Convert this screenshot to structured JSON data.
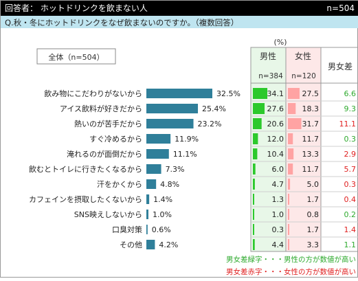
{
  "header": {
    "respondents": "回答者： ホットドリンクを飲まない人",
    "n_label": "n=504",
    "question": "Q.秋・冬にホットドリンクをなぜ飲まないのですか。（複数回答）"
  },
  "overall_label": "全体（n=504）",
  "percent_unit": "(%)",
  "columns": {
    "male": "男性",
    "male_n": "n=384",
    "female": "女性",
    "female_n": "n=120",
    "diff": "男女差"
  },
  "legend": {
    "green_note": "男女差緑字・・・男性の方が数値が高い",
    "red_note": "男女差赤字・・・女性の方が数値が高い"
  },
  "colors": {
    "bar": "#2f7f9a",
    "male_fill": "#2cc92c",
    "female_fill": "#ffa3a3",
    "male_col_bg": "#e8f7e8",
    "female_col_bg": "#fde8e8",
    "green_text": "#2eaa2e",
    "red_text": "#e02020"
  },
  "chart_data": {
    "type": "bar",
    "categories": [
      "飲み物にこだわりがないから",
      "アイス飲料が好きだから",
      "熱いのが苦手だから",
      "すぐ冷めるから",
      "淹れるのが面倒だから",
      "飲むとトイレに行きたくなるから",
      "汗をかくから",
      "カフェインを摂取したくないから",
      "SNS映えしないから",
      "口臭対策",
      "その他"
    ],
    "values": [
      32.5,
      25.4,
      23.2,
      11.9,
      11.1,
      7.3,
      4.8,
      1.4,
      1.0,
      0.6,
      4.2
    ],
    "value_labels": [
      "32.5%",
      "25.4%",
      "23.2%",
      "11.9%",
      "11.1%",
      "7.3%",
      "4.8%",
      "1.4%",
      "1.0%",
      "0.6%",
      "4.2%"
    ],
    "male": [
      "34.1",
      "27.6",
      "20.6",
      "12.0",
      "10.4",
      "6.0",
      "4.7",
      "1.3",
      "1.0",
      "0.3",
      "4.4"
    ],
    "female": [
      "27.5",
      "18.3",
      "31.7",
      "11.7",
      "13.3",
      "11.7",
      "5.0",
      "1.7",
      "0.8",
      "1.7",
      "3.3"
    ],
    "diff": [
      "6.6",
      "9.3",
      "11.1",
      "0.3",
      "2.9",
      "5.7",
      "0.3",
      "0.4",
      "0.2",
      "1.4",
      "1.1"
    ],
    "diff_favors": [
      "male",
      "male",
      "female",
      "male",
      "female",
      "female",
      "female",
      "female",
      "male",
      "female",
      "male"
    ],
    "ylim": [
      0,
      35
    ]
  }
}
